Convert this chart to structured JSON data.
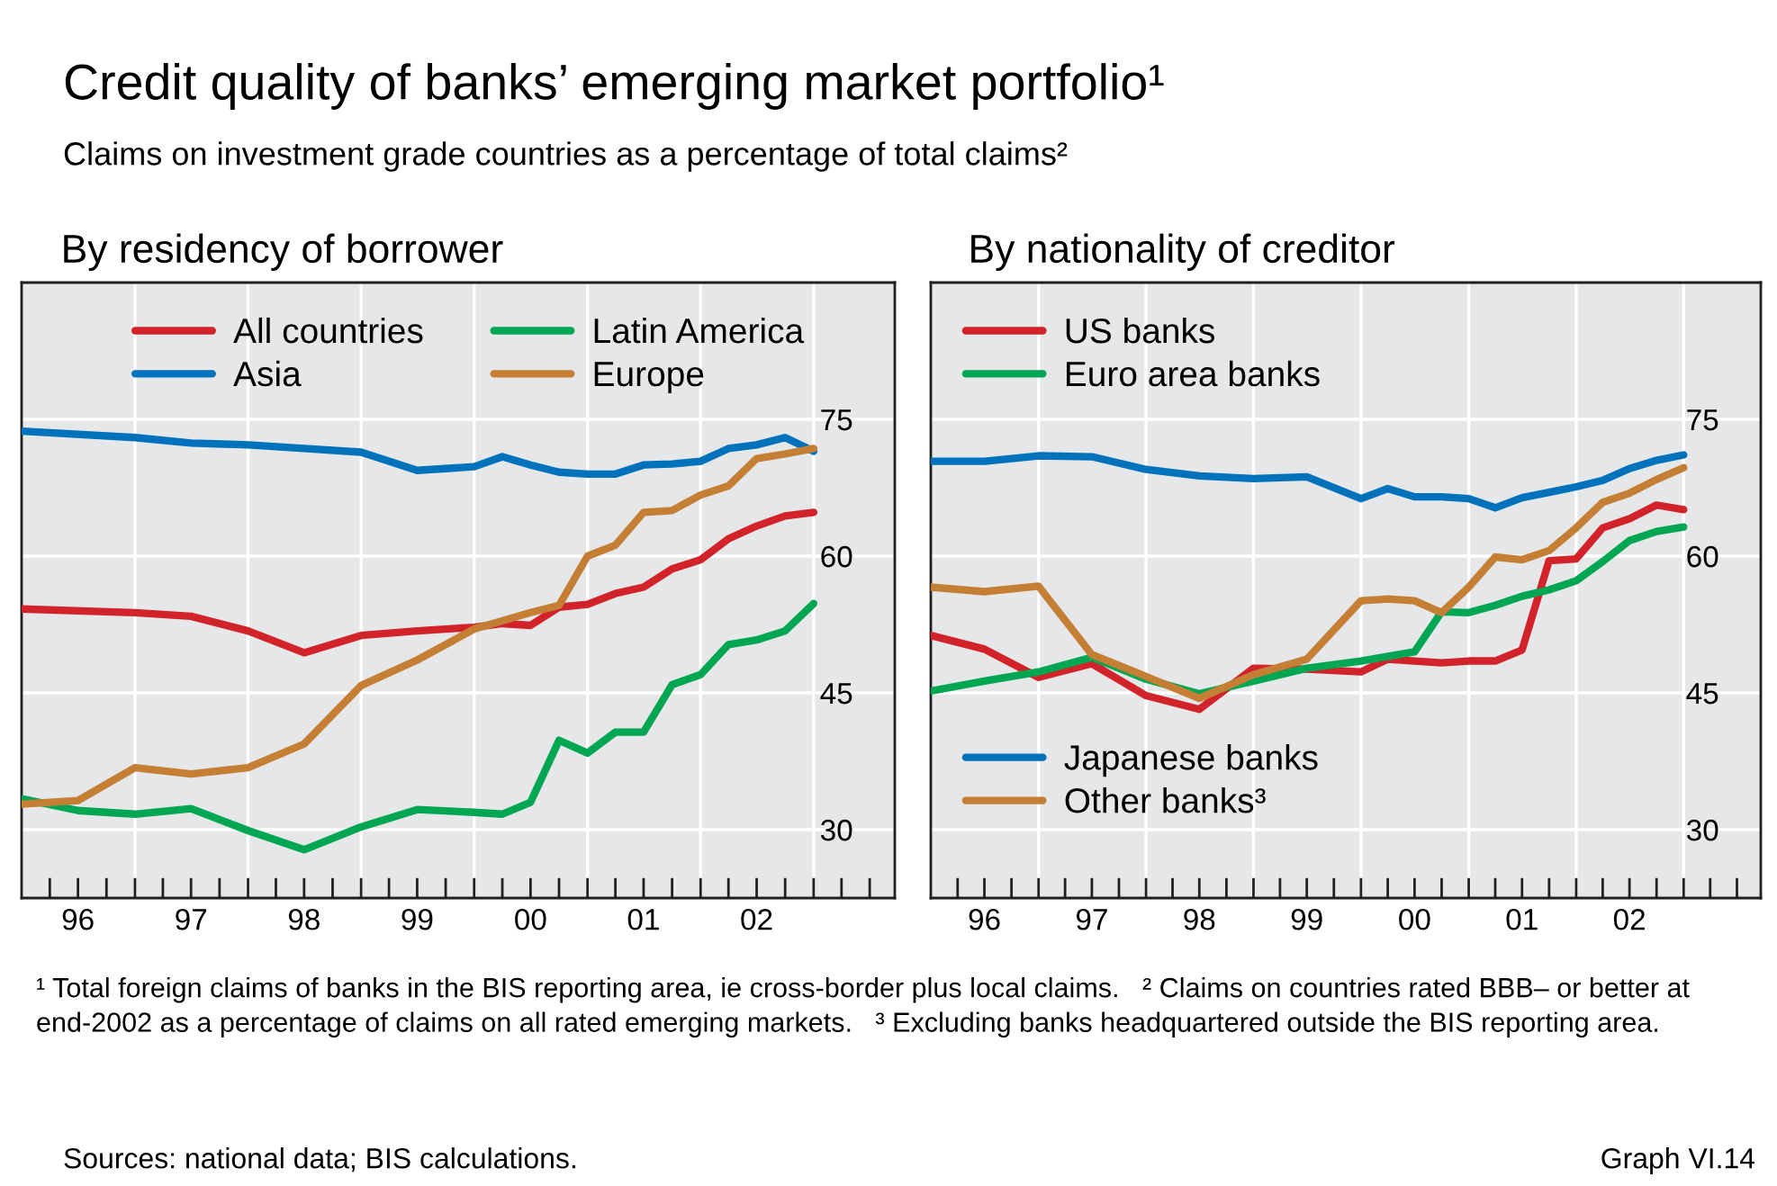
{
  "chart_data": [
    {
      "type": "line",
      "title": "By residency of borrower",
      "xlim": [
        "1996-01-01",
        "2003-09-20"
      ],
      "ylim": [
        22.5,
        90
      ],
      "yticks": [
        30,
        45,
        60,
        75
      ],
      "xticks": [
        {
          "value": "1996-07-01",
          "label": "96"
        },
        {
          "value": "1997-07-01",
          "label": "97"
        },
        {
          "value": "1998-07-01",
          "label": "98"
        },
        {
          "value": "1999-07-01",
          "label": "99"
        },
        {
          "value": "2000-07-01",
          "label": "00"
        },
        {
          "value": "2001-07-01",
          "label": "01"
        },
        {
          "value": "2002-07-01",
          "label": "02"
        },
        {
          "value": "1997-01-01",
          "label": null
        },
        {
          "value": "1998-01-01",
          "label": null
        },
        {
          "value": "1999-01-01",
          "label": null
        },
        {
          "value": "2000-01-01",
          "label": null
        },
        {
          "value": "2001-01-01",
          "label": null
        },
        {
          "value": "2002-01-01",
          "label": null
        },
        {
          "value": "2003-01-01",
          "label": null
        }
      ],
      "grid": true,
      "legend": "top left",
      "line_style": "solid",
      "marker": "none",
      "annotations": [
        "Credit quality of banks’ emerging market portfolio¹",
        "Claims on investment grade countries as a percentage of total claims²",
        "¹ Total foreign claims of banks in the BIS reporting area, ie cross-border plus local claims.   ² Claims on countries rated BBB– or better at end-2002 as a percentage of claims on all rated emerging markets.   ³ Excluding banks headquartered outside the BIS reporting area.",
        "Sources: national data; BIS calculations.",
        "Graph VI.14"
      ],
      "series": [
        {
          "name": "All countries",
          "color": "#d2232a",
          "x": [
            "1996-01-01",
            "1997-01-01",
            "1997-07-01",
            "1998-01-01",
            "1998-07-01",
            "1999-01-01",
            "1999-07-01",
            "2000-01-01",
            "2000-04-01",
            "2000-07-01",
            "2000-10-01",
            "2001-01-01",
            "2001-04-01",
            "2001-07-01",
            "2001-10-01",
            "2002-01-01",
            "2002-04-01",
            "2002-07-01",
            "2002-10-01",
            "2003-01-01"
          ],
          "values": [
            54.2,
            53.8,
            53.4,
            51.8,
            49.4,
            51.3,
            51.8,
            52.2,
            52.6,
            52.4,
            54.4,
            54.7,
            55.9,
            56.6,
            58.6,
            59.6,
            61.9,
            63.3,
            64.4,
            64.8
          ]
        },
        {
          "name": "Asia",
          "color": "#0072bc",
          "x": [
            "1996-01-01",
            "1997-01-01",
            "1997-07-01",
            "1998-01-01",
            "1998-07-01",
            "1999-01-01",
            "1999-07-01",
            "2000-01-01",
            "2000-04-01",
            "2000-07-01",
            "2000-10-01",
            "2001-01-01",
            "2001-04-01",
            "2001-07-01",
            "2001-10-01",
            "2002-01-01",
            "2002-04-01",
            "2002-07-01",
            "2002-10-01",
            "2003-01-01"
          ],
          "values": [
            73.7,
            73.0,
            72.4,
            72.2,
            71.8,
            71.4,
            69.4,
            69.8,
            70.9,
            70.0,
            69.2,
            69.0,
            69.0,
            70.0,
            70.1,
            70.4,
            71.8,
            72.2,
            73.0,
            71.5
          ]
        },
        {
          "name": "Latin America",
          "color": "#00a651",
          "x": [
            "1996-01-01",
            "1996-07-01",
            "1997-01-01",
            "1997-07-01",
            "1998-01-01",
            "1998-07-01",
            "1999-01-01",
            "1999-07-01",
            "2000-01-01",
            "2000-04-01",
            "2000-07-01",
            "2000-10-01",
            "2001-01-01",
            "2001-04-01",
            "2001-07-01",
            "2001-10-01",
            "2002-01-01",
            "2002-04-01",
            "2002-07-01",
            "2002-10-01",
            "2003-01-01"
          ],
          "values": [
            33.4,
            32.1,
            31.7,
            32.3,
            29.9,
            27.8,
            30.3,
            32.2,
            31.9,
            31.7,
            33.0,
            39.8,
            38.4,
            40.7,
            40.7,
            45.9,
            47.0,
            50.3,
            50.8,
            51.8,
            54.8
          ]
        },
        {
          "name": "Europe",
          "color": "#c47f35",
          "x": [
            "1996-01-01",
            "1996-07-01",
            "1997-01-01",
            "1997-07-01",
            "1998-01-01",
            "1998-07-01",
            "1999-01-01",
            "1999-07-01",
            "2000-01-01",
            "2000-07-01",
            "2000-10-01",
            "2001-01-01",
            "2001-04-01",
            "2001-07-01",
            "2001-10-01",
            "2002-01-01",
            "2002-04-01",
            "2002-07-01",
            "2002-10-01",
            "2003-01-01"
          ],
          "values": [
            32.8,
            33.2,
            36.8,
            36.1,
            36.8,
            39.4,
            45.8,
            48.6,
            52.0,
            53.8,
            54.6,
            60.0,
            61.2,
            64.8,
            65.0,
            66.7,
            67.7,
            70.7,
            71.2,
            71.8
          ]
        }
      ]
    },
    {
      "type": "line",
      "title": "By nationality of creditor",
      "xlim": [
        "1996-01-01",
        "2003-09-20"
      ],
      "ylim": [
        22.5,
        90
      ],
      "yticks": [
        30,
        45,
        60,
        75
      ],
      "xticks": [
        {
          "value": "1996-07-01",
          "label": "96"
        },
        {
          "value": "1997-07-01",
          "label": "97"
        },
        {
          "value": "1998-07-01",
          "label": "98"
        },
        {
          "value": "1999-07-01",
          "label": "99"
        },
        {
          "value": "2000-07-01",
          "label": "00"
        },
        {
          "value": "2001-07-01",
          "label": "01"
        },
        {
          "value": "2002-07-01",
          "label": "02"
        },
        {
          "value": "1997-01-01",
          "label": null
        },
        {
          "value": "1998-01-01",
          "label": null
        },
        {
          "value": "1999-01-01",
          "label": null
        },
        {
          "value": "2000-01-01",
          "label": null
        },
        {
          "value": "2001-01-01",
          "label": null
        },
        {
          "value": "2002-01-01",
          "label": null
        },
        {
          "value": "2003-01-01",
          "label": null
        }
      ],
      "grid": true,
      "legend": "left",
      "line_style": "solid",
      "marker": "none",
      "series": [
        {
          "name": "US banks",
          "color": "#d2232a",
          "x": [
            "1996-01-01",
            "1996-07-01",
            "1997-01-01",
            "1997-07-01",
            "1998-01-01",
            "1998-07-01",
            "1999-01-01",
            "1999-07-01",
            "2000-01-01",
            "2000-04-01",
            "2000-07-01",
            "2000-10-01",
            "2001-01-01",
            "2001-04-01",
            "2001-07-01",
            "2001-10-01",
            "2002-01-01",
            "2002-04-01",
            "2002-07-01",
            "2002-10-01",
            "2003-01-01"
          ],
          "values": [
            51.3,
            49.8,
            46.7,
            48.2,
            44.7,
            43.2,
            47.7,
            47.6,
            47.3,
            48.7,
            48.5,
            48.3,
            48.5,
            48.5,
            49.7,
            59.5,
            59.7,
            63.1,
            64.1,
            65.6,
            65.1
          ]
        },
        {
          "name": "Euro area banks",
          "color": "#00a651",
          "x": [
            "1996-01-01",
            "1996-07-01",
            "1997-01-01",
            "1997-07-01",
            "1998-01-01",
            "1998-07-01",
            "1999-01-01",
            "1999-07-01",
            "2000-01-01",
            "2000-07-01",
            "2000-10-01",
            "2001-01-01",
            "2001-04-01",
            "2001-07-01",
            "2001-10-01",
            "2002-01-01",
            "2002-04-01",
            "2002-07-01",
            "2002-10-01",
            "2003-01-01"
          ],
          "values": [
            45.2,
            46.3,
            47.3,
            48.9,
            46.5,
            44.9,
            46.3,
            47.7,
            48.5,
            49.5,
            53.9,
            53.8,
            54.6,
            55.6,
            56.3,
            57.3,
            59.4,
            61.7,
            62.7,
            63.2
          ]
        },
        {
          "name": "Japanese banks",
          "color": "#0072bc",
          "x": [
            "1996-01-01",
            "1996-07-01",
            "1997-01-01",
            "1997-07-01",
            "1998-01-01",
            "1998-07-01",
            "1999-01-01",
            "1999-07-01",
            "2000-01-01",
            "2000-04-01",
            "2000-07-01",
            "2000-10-01",
            "2001-01-01",
            "2001-04-01",
            "2001-07-01",
            "2001-10-01",
            "2002-01-01",
            "2002-04-01",
            "2002-07-01",
            "2002-10-01",
            "2003-01-01"
          ],
          "values": [
            70.4,
            70.4,
            71.0,
            70.9,
            69.5,
            68.8,
            68.5,
            68.7,
            66.3,
            67.4,
            66.5,
            66.5,
            66.3,
            65.3,
            66.4,
            67.0,
            67.6,
            68.3,
            69.6,
            70.5,
            71.1
          ]
        },
        {
          "name": "Other banks³",
          "color": "#c47f35",
          "x": [
            "1996-01-01",
            "1996-07-01",
            "1997-01-01",
            "1997-07-01",
            "1998-01-01",
            "1998-07-01",
            "1999-01-01",
            "1999-07-01",
            "2000-01-01",
            "2000-04-01",
            "2000-07-01",
            "2000-10-01",
            "2001-01-01",
            "2001-04-01",
            "2001-07-01",
            "2001-10-01",
            "2002-01-01",
            "2002-04-01",
            "2002-07-01",
            "2002-10-01",
            "2003-01-01"
          ],
          "values": [
            56.6,
            56.1,
            56.7,
            49.2,
            46.8,
            44.4,
            47.0,
            48.7,
            55.1,
            55.3,
            55.1,
            53.8,
            56.6,
            59.9,
            59.6,
            60.6,
            63.1,
            65.9,
            66.9,
            68.4,
            69.7
          ]
        }
      ]
    }
  ]
}
